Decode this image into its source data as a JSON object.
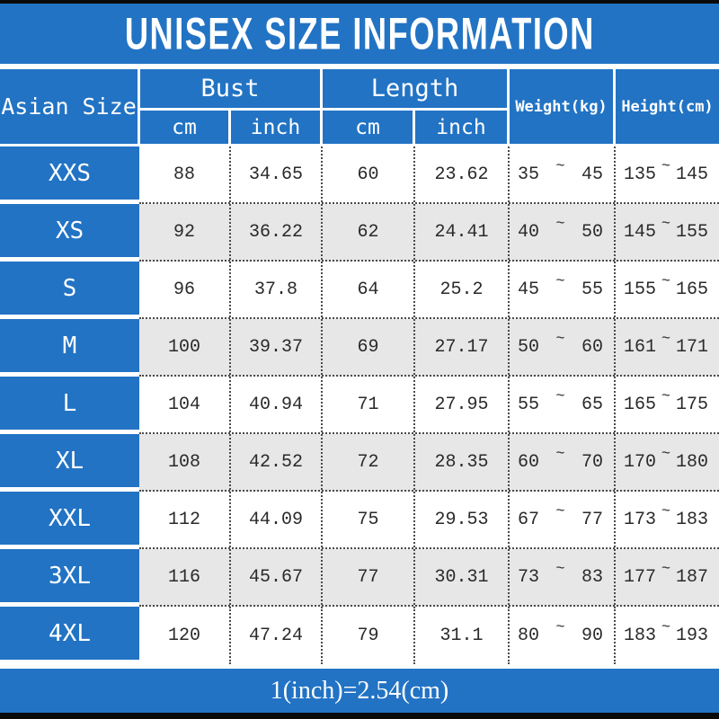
{
  "title": "UNISEX SIZE INFORMATION",
  "footer_note": "1(inch)=2.54(cm)",
  "colors": {
    "accent_blue": "#2273c4",
    "alt_row_gray": "#e7e7e7",
    "border_black": "#0a0a0a",
    "dotted_line": "#4a4a4a"
  },
  "header": {
    "size_col": "Asian Size",
    "bust_group": "Bust",
    "length_group": "Length",
    "unit_cm": "cm",
    "unit_inch": "inch",
    "weight_col": "Weight(kg)",
    "height_col": "Height(cm)",
    "range_separator": "~"
  },
  "rows": [
    {
      "size": "XXS",
      "bust_cm": "88",
      "bust_inch": "34.65",
      "length_cm": "60",
      "length_inch": "23.62",
      "weight_min": "35",
      "weight_max": "45",
      "height_min": "135",
      "height_max": "145"
    },
    {
      "size": "XS",
      "bust_cm": "92",
      "bust_inch": "36.22",
      "length_cm": "62",
      "length_inch": "24.41",
      "weight_min": "40",
      "weight_max": "50",
      "height_min": "145",
      "height_max": "155"
    },
    {
      "size": "S",
      "bust_cm": "96",
      "bust_inch": "37.8",
      "length_cm": "64",
      "length_inch": "25.2",
      "weight_min": "45",
      "weight_max": "55",
      "height_min": "155",
      "height_max": "165"
    },
    {
      "size": "M",
      "bust_cm": "100",
      "bust_inch": "39.37",
      "length_cm": "69",
      "length_inch": "27.17",
      "weight_min": "50",
      "weight_max": "60",
      "height_min": "161",
      "height_max": "171"
    },
    {
      "size": "L",
      "bust_cm": "104",
      "bust_inch": "40.94",
      "length_cm": "71",
      "length_inch": "27.95",
      "weight_min": "55",
      "weight_max": "65",
      "height_min": "165",
      "height_max": "175"
    },
    {
      "size": "XL",
      "bust_cm": "108",
      "bust_inch": "42.52",
      "length_cm": "72",
      "length_inch": "28.35",
      "weight_min": "60",
      "weight_max": "70",
      "height_min": "170",
      "height_max": "180"
    },
    {
      "size": "XXL",
      "bust_cm": "112",
      "bust_inch": "44.09",
      "length_cm": "75",
      "length_inch": "29.53",
      "weight_min": "67",
      "weight_max": "77",
      "height_min": "173",
      "height_max": "183"
    },
    {
      "size": "3XL",
      "bust_cm": "116",
      "bust_inch": "45.67",
      "length_cm": "77",
      "length_inch": "30.31",
      "weight_min": "73",
      "weight_max": "83",
      "height_min": "177",
      "height_max": "187"
    },
    {
      "size": "4XL",
      "bust_cm": "120",
      "bust_inch": "47.24",
      "length_cm": "79",
      "length_inch": "31.1",
      "weight_min": "80",
      "weight_max": "90",
      "height_min": "183",
      "height_max": "193"
    }
  ],
  "chart_data": {
    "type": "table",
    "title": "UNISEX SIZE INFORMATION",
    "columns": [
      "Asian Size",
      "Bust cm",
      "Bust inch",
      "Length cm",
      "Length inch",
      "Weight(kg)",
      "Height(cm)"
    ],
    "rows": [
      [
        "XXS",
        88,
        34.65,
        60,
        23.62,
        "35~45",
        "135~145"
      ],
      [
        "XS",
        92,
        36.22,
        62,
        24.41,
        "40~50",
        "145~155"
      ],
      [
        "S",
        96,
        37.8,
        64,
        25.2,
        "45~55",
        "155~165"
      ],
      [
        "M",
        100,
        39.37,
        69,
        27.17,
        "50~60",
        "161~171"
      ],
      [
        "L",
        104,
        40.94,
        71,
        27.95,
        "55~65",
        "165~175"
      ],
      [
        "XL",
        108,
        42.52,
        72,
        28.35,
        "60~70",
        "170~180"
      ],
      [
        "XXL",
        112,
        44.09,
        75,
        29.53,
        "67~77",
        "173~183"
      ],
      [
        "3XL",
        116,
        45.67,
        77,
        30.31,
        "73~83",
        "177~187"
      ],
      [
        "4XL",
        120,
        47.24,
        79,
        31.1,
        "80~90",
        "183~193"
      ]
    ],
    "footnote": "1(inch)=2.54(cm)"
  }
}
